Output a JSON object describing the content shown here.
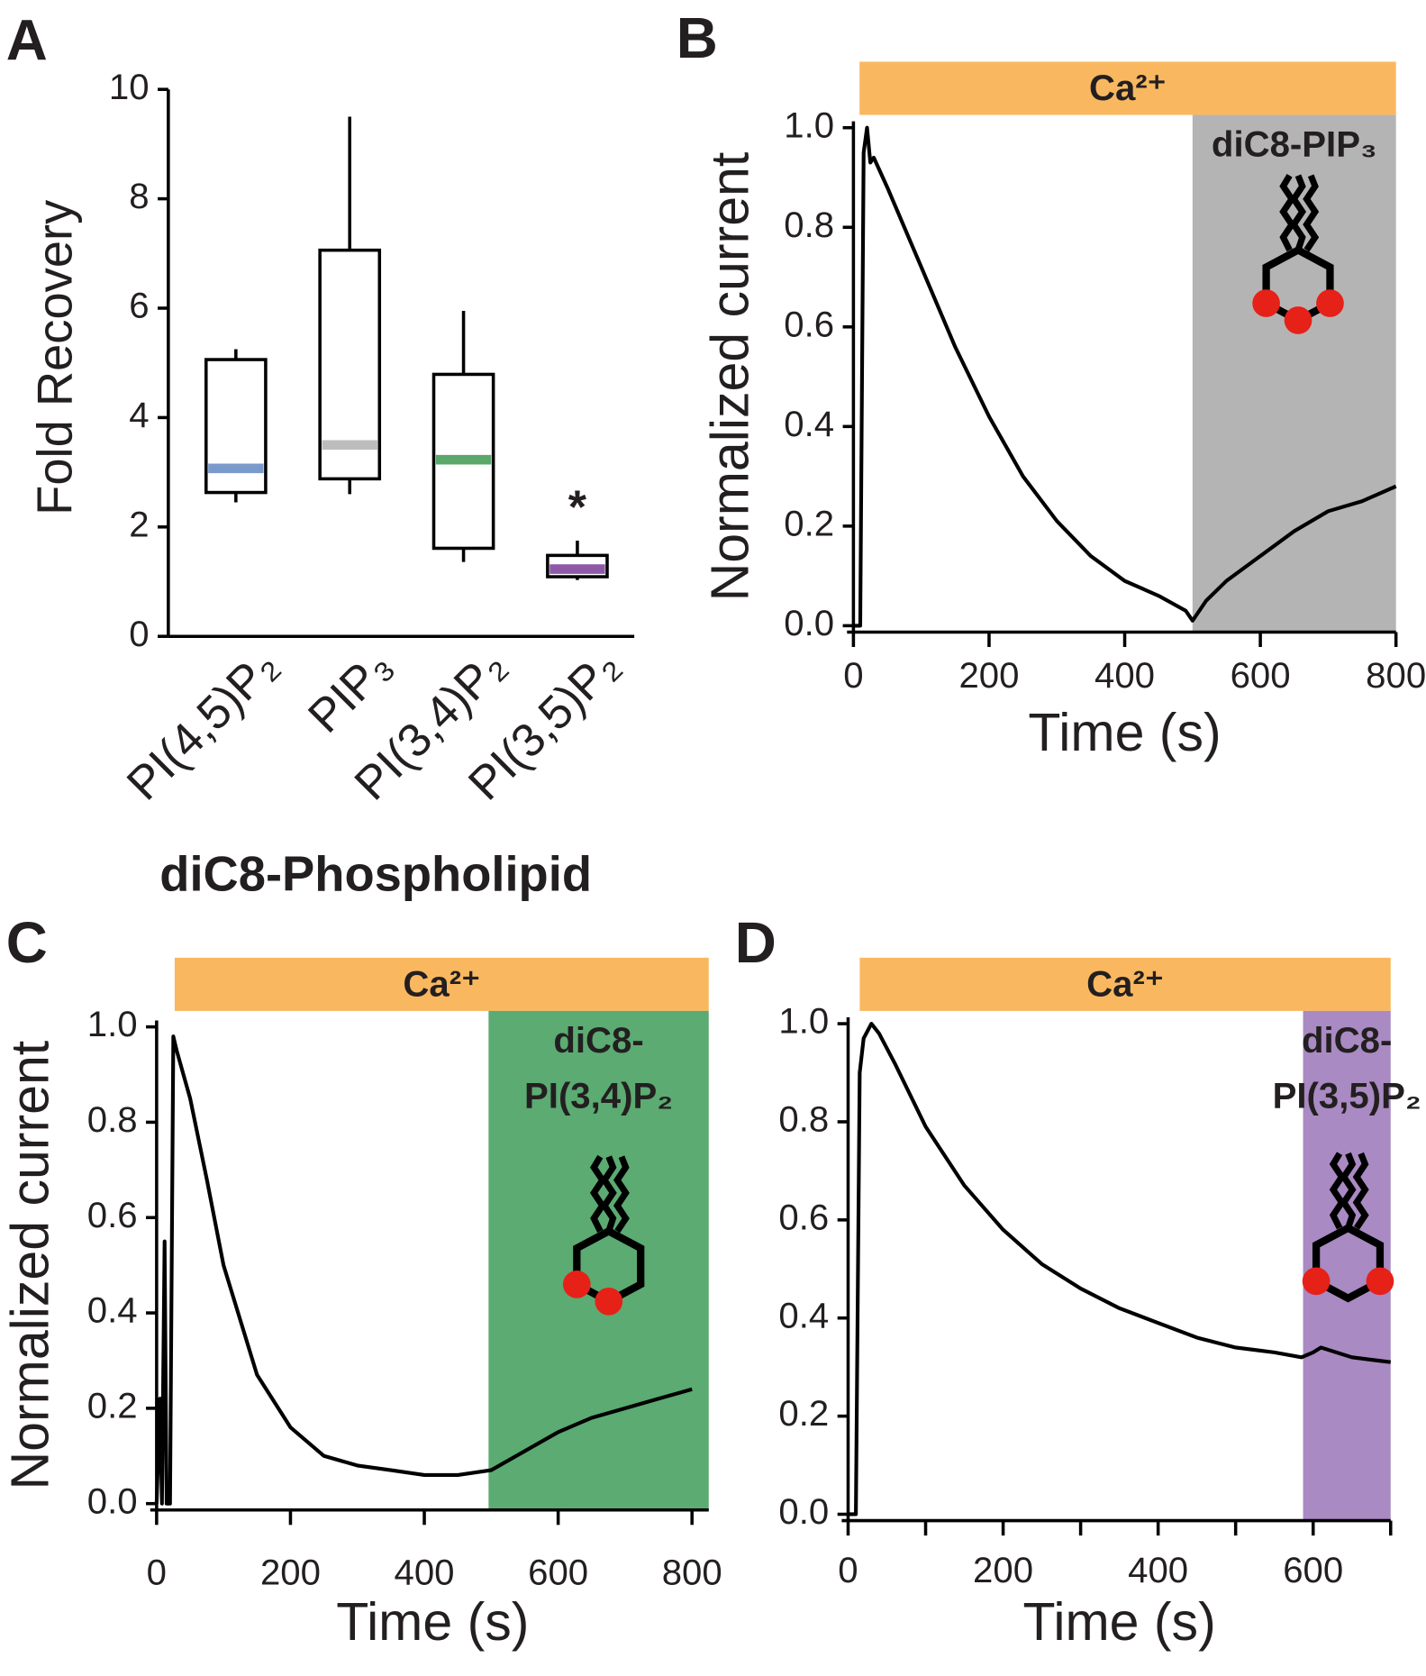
{
  "chart_data": [
    {
      "type": "box",
      "panel": "A",
      "ylabel": "Fold Recovery",
      "xlabel": "diC8-Phospholipid",
      "categories": [
        "PI(4,5)P₂",
        "PIP₃",
        "PI(3,4)P₂",
        "PI(3,5)P₂"
      ],
      "ylim": [
        0,
        10
      ],
      "yticks": [
        0,
        2,
        4,
        6,
        8,
        10
      ],
      "boxes": [
        {
          "low": 2.45,
          "q1": 2.63,
          "median": 3.07,
          "q3": 5.06,
          "high": 5.25,
          "color": "#7b9acc"
        },
        {
          "low": 2.6,
          "q1": 2.88,
          "median": 3.5,
          "q3": 7.06,
          "high": 9.5,
          "color": "#bdbdbd"
        },
        {
          "low": 1.36,
          "q1": 1.61,
          "median": 3.23,
          "q3": 4.79,
          "high": 5.95,
          "color": "#5aa86a"
        },
        {
          "low": 1.03,
          "q1": 1.09,
          "median": 1.23,
          "q3": 1.48,
          "high": 1.75,
          "color": "#8e5aa8",
          "label": "*"
        }
      ]
    },
    {
      "type": "line",
      "panel": "B",
      "xlabel": "Time (s)",
      "ylabel": "Normalized current",
      "color": "#000000",
      "x": [
        0,
        10,
        15,
        20,
        25,
        30,
        50,
        100,
        150,
        200,
        250,
        300,
        350,
        400,
        450,
        490,
        500,
        520,
        550,
        600,
        650,
        700,
        750,
        800
      ],
      "values": [
        0,
        0,
        0.95,
        1.0,
        0.93,
        0.94,
        0.88,
        0.72,
        0.56,
        0.42,
        0.3,
        0.21,
        0.14,
        0.09,
        0.06,
        0.03,
        0.01,
        0.05,
        0.09,
        0.14,
        0.19,
        0.23,
        0.25,
        0.28
      ],
      "xlim": [
        0,
        800
      ],
      "ylim": [
        0,
        1
      ],
      "xticks": [
        0,
        200,
        400,
        600,
        800
      ],
      "yticks": [
        {
          "value": 0,
          "label": "0.0"
        },
        {
          "value": 0.2,
          "label": "0.2"
        },
        {
          "value": 0.4,
          "label": "0.4"
        },
        {
          "value": 0.6,
          "label": "0.6"
        },
        {
          "value": 0.8,
          "label": "0.8"
        },
        {
          "value": 1,
          "label": "1.0"
        }
      ],
      "stimulus": {
        "label": "Ca²⁺",
        "start": 9,
        "end": 800,
        "color": "#f9b860"
      },
      "treatment": {
        "label": [
          "diC8-PIP₃"
        ],
        "start": 500,
        "end": 800,
        "color": "#b5b4b4"
      }
    },
    {
      "type": "line",
      "panel": "C",
      "xlabel": "Time (s)",
      "ylabel": "Normalized current",
      "color": "#000000",
      "x": [
        0,
        5,
        8,
        12,
        15,
        20,
        25,
        30,
        40,
        50,
        75,
        100,
        150,
        200,
        250,
        300,
        350,
        400,
        450,
        500,
        550,
        600,
        650,
        700,
        750,
        800
      ],
      "values": [
        0,
        0.22,
        0,
        0.55,
        0,
        0,
        0.98,
        0.95,
        0.9,
        0.85,
        0.68,
        0.5,
        0.27,
        0.16,
        0.1,
        0.08,
        0.07,
        0.06,
        0.06,
        0.07,
        0.11,
        0.15,
        0.18,
        0.2,
        0.22,
        0.24
      ],
      "xlim": [
        0,
        825
      ],
      "ylim": [
        0,
        1
      ],
      "xticks": [
        0,
        200,
        400,
        600,
        800
      ],
      "yticks": [
        {
          "value": 0,
          "label": "0.0"
        },
        {
          "value": 0.2,
          "label": "0.2"
        },
        {
          "value": 0.4,
          "label": "0.4"
        },
        {
          "value": 0.6,
          "label": "0.6"
        },
        {
          "value": 0.8,
          "label": "0.8"
        },
        {
          "value": 1,
          "label": "1.0"
        }
      ],
      "stimulus": {
        "label": "Ca²⁺",
        "start": 27,
        "end": 825,
        "color": "#f9b860"
      },
      "treatment": {
        "label": [
          "diC8-",
          "PI(3,4)P₂"
        ],
        "start": 496,
        "end": 825,
        "color": "#5bab72"
      }
    },
    {
      "type": "line",
      "panel": "D",
      "xlabel": "Time (s)",
      "color": "#000000",
      "x": [
        0,
        10,
        15,
        20,
        30,
        40,
        60,
        100,
        150,
        200,
        250,
        300,
        350,
        400,
        450,
        500,
        550,
        585,
        600,
        610,
        650,
        700
      ],
      "values": [
        0,
        0,
        0.9,
        0.97,
        1.0,
        0.98,
        0.92,
        0.79,
        0.67,
        0.58,
        0.51,
        0.46,
        0.42,
        0.39,
        0.36,
        0.34,
        0.33,
        0.32,
        0.33,
        0.34,
        0.32,
        0.31
      ],
      "xlim": [
        0,
        700
      ],
      "ylim": [
        0,
        1
      ],
      "xticks": [
        0,
        200,
        400,
        600
      ],
      "xminor": [
        100,
        300,
        500,
        700
      ],
      "yticks": [
        {
          "value": 0,
          "label": "0.0"
        },
        {
          "value": 0.2,
          "label": "0.2"
        },
        {
          "value": 0.4,
          "label": "0.4"
        },
        {
          "value": 0.6,
          "label": "0.6"
        },
        {
          "value": 0.8,
          "label": "0.8"
        },
        {
          "value": 1,
          "label": "1.0"
        }
      ],
      "stimulus": {
        "label": "Ca²⁺",
        "start": 15,
        "end": 700,
        "color": "#f9b860"
      },
      "treatment": {
        "label": [
          "diC8-",
          "PI(3,5)P₂"
        ],
        "start": 587,
        "end": 700,
        "color": "#a98ac2"
      }
    }
  ]
}
